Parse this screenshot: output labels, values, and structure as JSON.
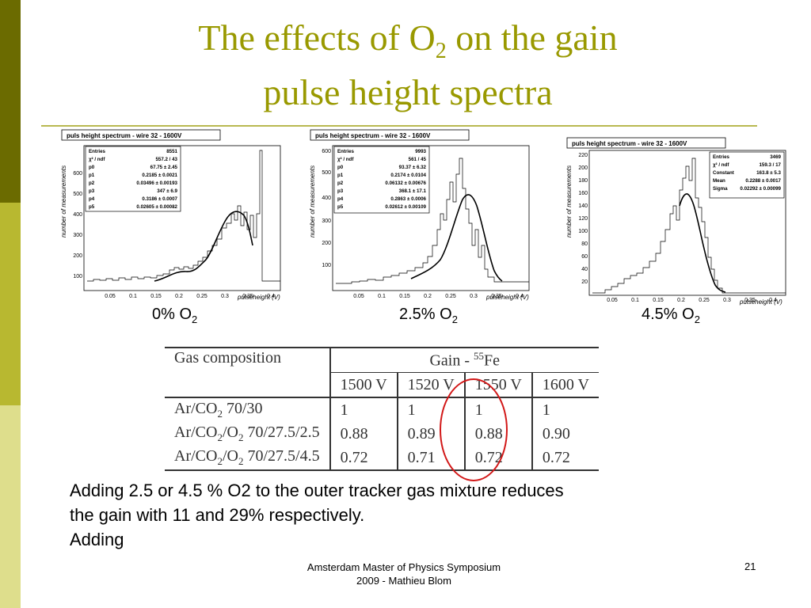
{
  "slide": {
    "title_line1_before": "The effects of O",
    "title_line1_sub": "2",
    "title_line1_after": " on the gain",
    "title_line2": "pulse height spectra"
  },
  "plots": [
    {
      "header": "puls height spectrum - wire 32 - 1600V",
      "ylabel": "number of measurements",
      "xlabel": "pulseheight (V)",
      "yticks": [
        "100",
        "200",
        "300",
        "400",
        "500",
        "600"
      ],
      "xticks": [
        "0.05",
        "0.1",
        "0.15",
        "0.2",
        "0.25",
        "0.3",
        "0.35",
        "0.4"
      ],
      "stats": [
        [
          "Entries",
          "8551"
        ],
        [
          "χ² / ndf",
          "557.2 / 43"
        ],
        [
          "p0",
          "67.75 ± 2.45"
        ],
        [
          "p1",
          "0.2185 ± 0.0021"
        ],
        [
          "p2",
          "0.03496 ± 0.00193"
        ],
        [
          "p3",
          "347 ± 6.9"
        ],
        [
          "p4",
          "0.3186 ± 0.0007"
        ],
        [
          "p5",
          "0.02605 ± 0.00082"
        ]
      ],
      "caption_prefix": "0% O",
      "caption_sub": "2"
    },
    {
      "header": "puls height spectrum - wire 32 - 1600V",
      "ylabel": "number of measurements",
      "xlabel": "pulseheight (V)",
      "yticks": [
        "100",
        "200",
        "300",
        "400",
        "500",
        "600"
      ],
      "xticks": [
        "0.05",
        "0.1",
        "0.15",
        "0.2",
        "0.25",
        "0.3",
        "0.35",
        "0.4"
      ],
      "stats": [
        [
          "Entries",
          "9993"
        ],
        [
          "χ² / ndf",
          "561 / 45"
        ],
        [
          "p0",
          "93.37 ± 6.32"
        ],
        [
          "p1",
          "0.2174 ± 0.0104"
        ],
        [
          "p2",
          "0.06132 ± 0.00676"
        ],
        [
          "p3",
          "368.1 ± 17.1"
        ],
        [
          "p4",
          "0.2863 ± 0.0006"
        ],
        [
          "p5",
          "0.02612 ± 0.00109"
        ]
      ],
      "caption_prefix": "2.5% O",
      "caption_sub": "2"
    },
    {
      "header": "puls height spectrum - wire 32 - 1600V",
      "ylabel": "number of measurements",
      "xlabel": "pulseheight (V)",
      "yticks": [
        "20",
        "40",
        "60",
        "80",
        "100",
        "120",
        "140",
        "160",
        "180",
        "200",
        "220"
      ],
      "xticks": [
        "0.05",
        "0.1",
        "0.15",
        "0.2",
        "0.25",
        "0.3",
        "0.35",
        "0.4"
      ],
      "stats": [
        [
          "Entries",
          "3469"
        ],
        [
          "χ² / ndf",
          "159.3 / 17"
        ],
        [
          "Constant",
          "163.8 ± 5.3"
        ],
        [
          "Mean",
          "0.2288 ± 0.0017"
        ],
        [
          "Sigma",
          "0.02292 ± 0.00099"
        ]
      ],
      "caption_prefix": "4.5% O",
      "caption_sub": "2"
    }
  ],
  "table": {
    "head_gas": "Gas composition",
    "head_gain_prefix": "Gain - ",
    "head_gain_sup": "55",
    "head_gain_suffix": "Fe",
    "voltages": [
      "1500 V",
      "1520 V",
      "1550 V",
      "1600 V"
    ],
    "rows": [
      {
        "gas_a": "Ar/CO",
        "sub_a": "2",
        "gas_b": "",
        "sub_b": "",
        "gas_c": " 70/30",
        "values": [
          "1",
          "1",
          "1",
          "1"
        ]
      },
      {
        "gas_a": "Ar/CO",
        "sub_a": "2",
        "gas_b": "/O",
        "sub_b": "2",
        "gas_c": " 70/27.5/2.5",
        "values": [
          "0.88",
          "0.89",
          "0.88",
          "0.90"
        ]
      },
      {
        "gas_a": "Ar/CO",
        "sub_a": "2",
        "gas_b": "/O",
        "sub_b": "2",
        "gas_c": " 70/27.5/4.5",
        "values": [
          "0.72",
          "0.71",
          "0.72",
          "0.72"
        ]
      }
    ]
  },
  "body": {
    "line1": "Adding 2.5 or 4.5 % O2 to the outer tracker gas mixture reduces",
    "line2": "the gain with 11 and 29% respectively.",
    "line3": "Adding"
  },
  "footer": {
    "line1": "Amsterdam Master of Physics Symposium",
    "line2": "2009 - Mathieu Blom",
    "page_number": "21"
  },
  "colors": {
    "title": "#999900",
    "sidebar_dark": "#6b6b00",
    "sidebar_mid": "#b8b830",
    "sidebar_light": "#dede8c",
    "circle": "#d21818"
  }
}
